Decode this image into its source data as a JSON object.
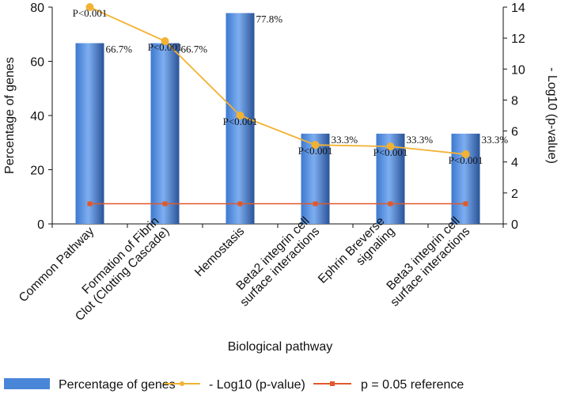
{
  "chart_data": {
    "type": "bar",
    "xlabel": "Biological pathway",
    "ylabel_left": "Percentage of genes",
    "ylabel_right": "- Log10 (p-value)",
    "ylim_left": [
      0,
      80
    ],
    "yticks_left": [
      "0",
      "20",
      "40",
      "60",
      "80"
    ],
    "ylim_right": [
      0,
      14
    ],
    "yticks_right": [
      "0",
      "2",
      "4",
      "6",
      "8",
      "10",
      "12",
      "14"
    ],
    "categories": [
      [
        "Common  Pathway"
      ],
      [
        "Formation of Fibrin",
        "Clot  (Clotting  Cascade)"
      ],
      [
        "Hemostasis"
      ],
      [
        "Beta2 integrin cell",
        "surface interactions"
      ],
      [
        "Ephrin Breverse",
        "signaling"
      ],
      [
        "Beta3 integrin cell",
        "surface interactions"
      ]
    ],
    "series": [
      {
        "name": "Percentage of genes",
        "kind": "bar",
        "axis": "left",
        "color": "#4a86d8",
        "values": [
          66.7,
          66.7,
          77.8,
          33.3,
          33.3,
          33.3
        ],
        "labels": [
          "66.7%",
          "66.7%",
          "77.8%",
          "33.3%",
          "33.3%",
          "33.3%"
        ]
      },
      {
        "name": "- Log10 (p-value)",
        "kind": "line",
        "axis": "right",
        "color": "#f2b233",
        "values": [
          14.0,
          11.8,
          7.0,
          5.1,
          5.0,
          4.5
        ],
        "labels": [
          "P<0.001",
          "P<0.001",
          "P<0.001",
          "P<0.001",
          "P<0.001",
          "P<0.001"
        ]
      },
      {
        "name": "p = 0.05 reference",
        "kind": "line",
        "axis": "right",
        "color": "#e0592c",
        "values": [
          1.3,
          1.3,
          1.3,
          1.3,
          1.3,
          1.3
        ]
      }
    ],
    "legend_position": "bottom",
    "grid": false
  }
}
